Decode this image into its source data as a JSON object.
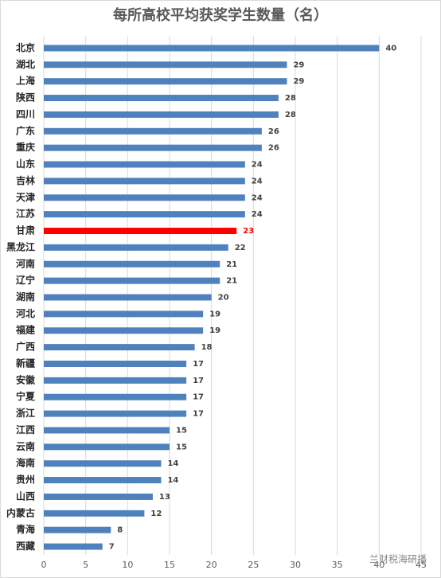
{
  "chart_data": {
    "type": "bar",
    "orientation": "horizontal",
    "title": "每所高校平均获奖学生数量（名）",
    "categories": [
      "北京",
      "湖北",
      "上海",
      "陕西",
      "四川",
      "广东",
      "重庆",
      "山东",
      "吉林",
      "天津",
      "江苏",
      "甘肃",
      "黑龙江",
      "河南",
      "辽宁",
      "湖南",
      "河北",
      "福建",
      "广西",
      "新疆",
      "安徽",
      "宁夏",
      "浙江",
      "江西",
      "云南",
      "海南",
      "贵州",
      "山西",
      "内蒙古",
      "青海",
      "西藏"
    ],
    "values": [
      40,
      29,
      29,
      28,
      28,
      26,
      26,
      24,
      24,
      24,
      24,
      23,
      22,
      21,
      21,
      20,
      19,
      19,
      18,
      17,
      17,
      17,
      17,
      15,
      15,
      14,
      14,
      13,
      12,
      8,
      7
    ],
    "colors": [
      "#4f81bd",
      "#4f81bd",
      "#4f81bd",
      "#4f81bd",
      "#4f81bd",
      "#4f81bd",
      "#4f81bd",
      "#4f81bd",
      "#4f81bd",
      "#4f81bd",
      "#4f81bd",
      "#ff0000",
      "#4f81bd",
      "#4f81bd",
      "#4f81bd",
      "#4f81bd",
      "#4f81bd",
      "#4f81bd",
      "#4f81bd",
      "#4f81bd",
      "#4f81bd",
      "#4f81bd",
      "#4f81bd",
      "#4f81bd",
      "#4f81bd",
      "#4f81bd",
      "#4f81bd",
      "#4f81bd",
      "#4f81bd",
      "#4f81bd",
      "#4f81bd"
    ],
    "xlim": [
      0,
      45
    ],
    "xticks": [
      0,
      5,
      10,
      15,
      20,
      25,
      30,
      35,
      40,
      45
    ],
    "grid": true,
    "watermark": "兰财税海研播"
  }
}
